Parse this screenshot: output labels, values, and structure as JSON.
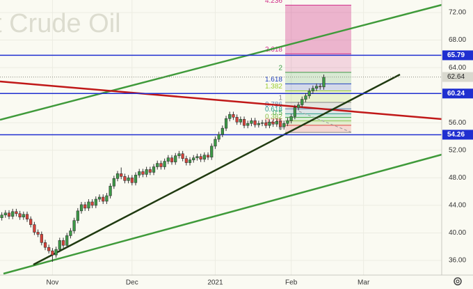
{
  "chart_data": {
    "type": "candlestick",
    "title": "t Crude Oil",
    "open": [
      42.2,
      42.6,
      42.9,
      42.4,
      43.1,
      42.8,
      42.3,
      42.7,
      42.0,
      41.2,
      40.1,
      39.8,
      38.6,
      37.9,
      37.4,
      36.8,
      37.6,
      38.9,
      38.2,
      39.6,
      40.3,
      41.8,
      43.2,
      44.1,
      43.6,
      44.5,
      44.0,
      44.9,
      45.2,
      44.6,
      45.4,
      46.8,
      47.9,
      48.6,
      48.2,
      47.6,
      48.0,
      47.3,
      48.4,
      48.9,
      48.5,
      49.2,
      48.8,
      49.6,
      50.1,
      49.6,
      50.4,
      50.9,
      50.3,
      51.2,
      51.5,
      50.8,
      50.2,
      50.6,
      50.9,
      51.1,
      50.7,
      51.3,
      51.0,
      52.6,
      53.6,
      54.3,
      55.2,
      56.6,
      57.2,
      56.8,
      56.1,
      56.5,
      55.6,
      55.9,
      56.3,
      55.7,
      55.9,
      56.0,
      55.6,
      56.1,
      55.8,
      56.2,
      55.4,
      55.9,
      56.3,
      56.9,
      58.2,
      58.6,
      59.4,
      59.9,
      60.6,
      61.0,
      61.3,
      61.2
    ],
    "high": [
      43.0,
      43.3,
      43.3,
      43.5,
      43.5,
      43.2,
      43.1,
      43.1,
      42.4,
      41.6,
      40.5,
      40.2,
      39.0,
      38.3,
      37.8,
      38.0,
      39.3,
      39.3,
      40.0,
      40.7,
      42.2,
      43.6,
      44.5,
      44.5,
      44.9,
      44.9,
      45.3,
      45.6,
      45.6,
      45.8,
      47.2,
      48.3,
      49.0,
      49.5,
      48.6,
      48.4,
      48.4,
      48.8,
      49.3,
      49.3,
      49.6,
      49.6,
      50.0,
      50.5,
      50.5,
      50.8,
      51.3,
      51.3,
      51.6,
      51.9,
      51.9,
      51.2,
      51.0,
      51.3,
      51.5,
      51.5,
      51.7,
      51.7,
      53.0,
      54.0,
      54.7,
      55.6,
      57.0,
      57.6,
      57.6,
      57.2,
      56.9,
      56.9,
      56.3,
      56.7,
      56.7,
      56.3,
      56.4,
      56.4,
      56.5,
      56.5,
      56.6,
      56.6,
      56.3,
      56.7,
      57.3,
      58.6,
      59.0,
      59.8,
      60.3,
      61.0,
      61.4,
      61.7,
      61.7,
      63.0
    ],
    "low": [
      41.8,
      42.2,
      42.0,
      42.0,
      42.4,
      41.9,
      41.9,
      41.6,
      40.8,
      39.7,
      39.4,
      38.2,
      37.5,
      37.0,
      35.8,
      36.4,
      37.2,
      37.8,
      37.8,
      39.2,
      39.9,
      41.4,
      42.8,
      43.2,
      43.2,
      43.6,
      43.6,
      44.5,
      44.2,
      44.2,
      45.0,
      46.4,
      47.5,
      47.8,
      47.2,
      47.2,
      46.9,
      46.9,
      48.0,
      48.1,
      48.1,
      48.4,
      48.4,
      49.2,
      49.2,
      49.2,
      50.0,
      49.9,
      49.9,
      50.8,
      50.4,
      49.8,
      49.8,
      50.2,
      50.5,
      50.3,
      50.3,
      50.6,
      50.6,
      52.2,
      53.2,
      53.9,
      54.8,
      56.2,
      56.4,
      55.7,
      55.7,
      55.2,
      55.2,
      55.5,
      55.3,
      55.3,
      55.5,
      55.2,
      55.2,
      55.4,
      55.4,
      55.0,
      55.0,
      55.5,
      55.9,
      56.5,
      57.8,
      58.2,
      59.0,
      59.5,
      60.2,
      60.6,
      60.8,
      60.8
    ],
    "close": [
      42.6,
      42.9,
      42.4,
      43.1,
      42.8,
      42.3,
      42.7,
      42.0,
      41.2,
      40.1,
      39.8,
      38.6,
      37.9,
      37.4,
      36.8,
      37.6,
      38.9,
      38.2,
      39.6,
      40.3,
      41.8,
      43.2,
      44.1,
      43.6,
      44.5,
      44.0,
      44.9,
      45.2,
      44.6,
      45.4,
      46.8,
      47.9,
      48.6,
      48.2,
      47.6,
      48.0,
      47.3,
      48.4,
      48.9,
      48.5,
      49.2,
      48.8,
      49.6,
      50.1,
      49.6,
      50.4,
      50.9,
      50.3,
      51.2,
      51.5,
      50.8,
      50.2,
      50.6,
      50.9,
      51.1,
      50.7,
      51.3,
      51.0,
      52.6,
      53.6,
      54.3,
      55.2,
      56.6,
      57.2,
      56.8,
      56.1,
      56.5,
      55.6,
      55.9,
      56.3,
      55.7,
      55.9,
      56.0,
      55.6,
      56.1,
      55.8,
      56.2,
      55.4,
      55.9,
      56.3,
      56.9,
      58.2,
      58.6,
      59.4,
      59.9,
      60.6,
      61.0,
      61.3,
      61.2,
      62.6
    ],
    "up_color": "#3c9a46",
    "down_color": "#d9423a",
    "xlim": [
      -0.5,
      121.6
    ],
    "xticks": [
      {
        "value": 14,
        "label": "Nov"
      },
      {
        "value": 36,
        "label": "Dec"
      },
      {
        "value": 59,
        "label": "2021"
      },
      {
        "value": 80,
        "label": "Feb"
      },
      {
        "value": 100,
        "label": "Mar"
      }
    ],
    "ylim": [
      33.88,
      73.82
    ],
    "yticks": [
      {
        "value": 36,
        "label": "36.00"
      },
      {
        "value": 40,
        "label": "40.00"
      },
      {
        "value": 44,
        "label": "44.00"
      },
      {
        "value": 48,
        "label": "48.00"
      },
      {
        "value": 52,
        "label": "52.00"
      },
      {
        "value": 56,
        "label": "56.00"
      },
      {
        "value": 64,
        "label": "64.00"
      },
      {
        "value": 68,
        "label": "68.00"
      },
      {
        "value": 72,
        "label": "72.00"
      }
    ],
    "grid": true,
    "hlines": [
      65.79,
      60.24,
      54.26
    ],
    "hline_color": "#1f2fd0",
    "last_price": 62.64,
    "fib": {
      "base": 54.6,
      "top": 58.96,
      "levels": [
        0,
        0.236,
        0.382,
        0.5,
        0.618,
        0.786,
        1,
        1.382,
        1.618,
        2,
        2.618,
        4.236
      ],
      "colors": [
        "#888888",
        "#e04040",
        "#8bc34a",
        "#4caf50",
        "#2a9d8f",
        "#5a7fb0",
        "#888888",
        "#9acd32",
        "#2040c0",
        "#3c9a46",
        "#d0308a",
        "#d0308a"
      ]
    }
  }
}
